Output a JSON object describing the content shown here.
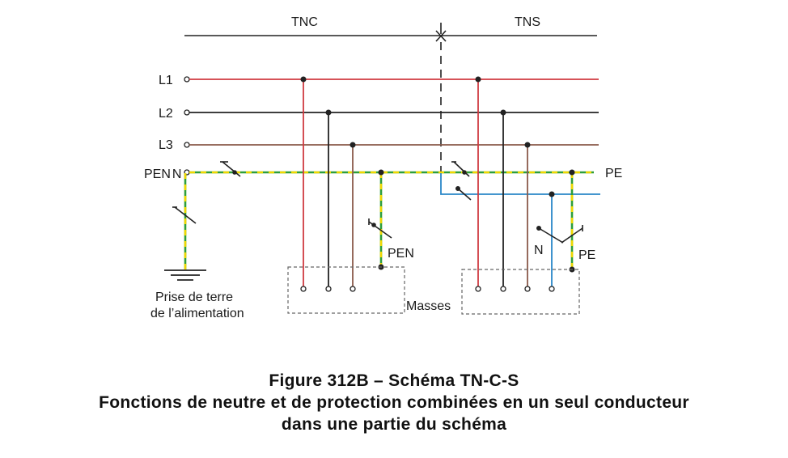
{
  "labels": {
    "tnc": "TNC",
    "tns": "TNS",
    "l1": "L1",
    "l2": "L2",
    "l3": "L3",
    "pen_n": "PEN",
    "pe_right": "PE",
    "pen_branch": "PEN",
    "n_branch": "N",
    "pe_branch": "PE",
    "masses": "Masses",
    "earth_line1": "Prise de terre",
    "earth_line2": "de l’alimentation"
  },
  "caption": {
    "line1": "Figure 312B – Schéma TN-C-S",
    "line2": "Fonctions de neutre et de protection combinées en un seul conducteur",
    "line3": "dans une partie du schéma"
  },
  "colors": {
    "l1": "#d03a40",
    "l2": "#222222",
    "l3": "#8a5a4a",
    "pen_green": "#2e9e3a",
    "pen_yellow": "#f0d800",
    "n_blue": "#2a87c8",
    "frame": "#666666"
  }
}
